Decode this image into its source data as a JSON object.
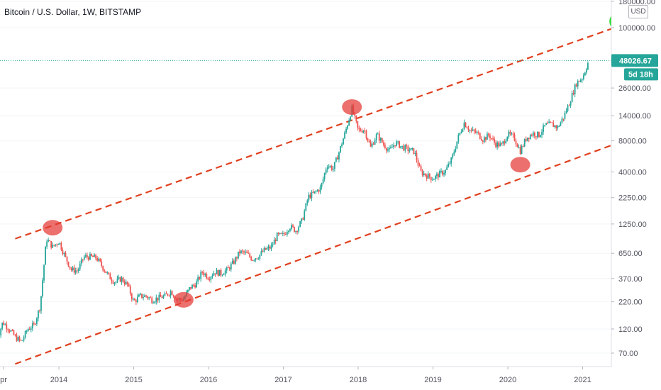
{
  "header": {
    "title": "Bitcoin / U.S. Dollar, 1W, BITSTAMP"
  },
  "price_axis": {
    "currency_button": "USD"
  },
  "last_price": {
    "value": "48026.67",
    "countdown": "5d 18h",
    "color": "#26a69a"
  },
  "colors": {
    "up": "#26a69a",
    "down": "#ef5350",
    "channel": "#e0401f",
    "highlight_red": "#e53935",
    "highlight_green": "#22dd22"
  },
  "chart_data": {
    "type": "candlestick",
    "title": "Bitcoin / U.S. Dollar, 1W, BITSTAMP",
    "yscale": "log",
    "ylim": [
      45,
      190000
    ],
    "xlim": [
      "2013-03",
      "2021-09"
    ],
    "x_ticks": [
      "pr",
      "2014",
      "2015",
      "2016",
      "2017",
      "2018",
      "2019",
      "2020",
      "2021"
    ],
    "y_ticks": [
      "180000.00",
      "100000.00",
      "26000.00",
      "14000.00",
      "8000.00",
      "4000.00",
      "2250.00",
      "1250.00",
      "650.00",
      "370.00",
      "220.00",
      "120.00",
      "70.00"
    ],
    "last_price": 48026.67,
    "price_path": [
      [
        "2013-03",
        90
      ],
      [
        "2013-04",
        140
      ],
      [
        "2013-05",
        120
      ],
      [
        "2013-06",
        100
      ],
      [
        "2013-07",
        90
      ],
      [
        "2013-08",
        120
      ],
      [
        "2013-09",
        130
      ],
      [
        "2013-10",
        200
      ],
      [
        "2013-11",
        900
      ],
      [
        "2013-12",
        750
      ],
      [
        "2014-01",
        850
      ],
      [
        "2014-02",
        600
      ],
      [
        "2014-03",
        450
      ],
      [
        "2014-04",
        440
      ],
      [
        "2014-05",
        600
      ],
      [
        "2014-06",
        600
      ],
      [
        "2014-07",
        590
      ],
      [
        "2014-08",
        480
      ],
      [
        "2014-09",
        390
      ],
      [
        "2014-10",
        340
      ],
      [
        "2014-11",
        370
      ],
      [
        "2014-12",
        320
      ],
      [
        "2015-01",
        220
      ],
      [
        "2015-02",
        250
      ],
      [
        "2015-03",
        250
      ],
      [
        "2015-04",
        230
      ],
      [
        "2015-05",
        240
      ],
      [
        "2015-06",
        250
      ],
      [
        "2015-07",
        280
      ],
      [
        "2015-08",
        230
      ],
      [
        "2015-09",
        235
      ],
      [
        "2015-10",
        300
      ],
      [
        "2015-11",
        330
      ],
      [
        "2015-12",
        430
      ],
      [
        "2016-01",
        380
      ],
      [
        "2016-02",
        430
      ],
      [
        "2016-03",
        415
      ],
      [
        "2016-04",
        450
      ],
      [
        "2016-05",
        530
      ],
      [
        "2016-06",
        670
      ],
      [
        "2016-07",
        650
      ],
      [
        "2016-08",
        575
      ],
      [
        "2016-09",
        610
      ],
      [
        "2016-10",
        700
      ],
      [
        "2016-11",
        740
      ],
      [
        "2016-12",
        960
      ],
      [
        "2017-01",
        970
      ],
      [
        "2017-02",
        1190
      ],
      [
        "2017-03",
        1080
      ],
      [
        "2017-04",
        1350
      ],
      [
        "2017-05",
        2300
      ],
      [
        "2017-06",
        2500
      ],
      [
        "2017-07",
        2800
      ],
      [
        "2017-08",
        4700
      ],
      [
        "2017-09",
        4300
      ],
      [
        "2017-10",
        6400
      ],
      [
        "2017-11",
        10000
      ],
      [
        "2017-12",
        16500
      ],
      [
        "2018-01",
        10100
      ],
      [
        "2018-02",
        10300
      ],
      [
        "2018-03",
        6900
      ],
      [
        "2018-04",
        9200
      ],
      [
        "2018-05",
        7500
      ],
      [
        "2018-06",
        6400
      ],
      [
        "2018-07",
        7700
      ],
      [
        "2018-08",
        7000
      ],
      [
        "2018-09",
        6600
      ],
      [
        "2018-10",
        6300
      ],
      [
        "2018-11",
        4000
      ],
      [
        "2018-12",
        3700
      ],
      [
        "2019-01",
        3450
      ],
      [
        "2019-02",
        3800
      ],
      [
        "2019-03",
        4100
      ],
      [
        "2019-04",
        5300
      ],
      [
        "2019-05",
        8500
      ],
      [
        "2019-06",
        12000
      ],
      [
        "2019-07",
        10000
      ],
      [
        "2019-08",
        9600
      ],
      [
        "2019-09",
        8300
      ],
      [
        "2019-10",
        9100
      ],
      [
        "2019-11",
        7500
      ],
      [
        "2019-12",
        7200
      ],
      [
        "2020-01",
        9300
      ],
      [
        "2020-02",
        8600
      ],
      [
        "2020-03",
        6400
      ],
      [
        "2020-04",
        8600
      ],
      [
        "2020-05",
        9450
      ],
      [
        "2020-06",
        9100
      ],
      [
        "2020-07",
        11300
      ],
      [
        "2020-08",
        11600
      ],
      [
        "2020-09",
        10800
      ],
      [
        "2020-10",
        13800
      ],
      [
        "2020-11",
        19700
      ],
      [
        "2020-12",
        29000
      ],
      [
        "2021-01",
        33000
      ],
      [
        "2021-02",
        48026.67
      ]
    ],
    "channel": {
      "upper": [
        [
          "2013-06",
          900
        ],
        [
          "2021-09",
          115000
        ]
      ],
      "lower": [
        [
          "2013-06",
          55
        ],
        [
          "2021-09",
          8600
        ]
      ]
    },
    "highlights": [
      {
        "date": "2013-12",
        "price": 1150,
        "color": "red"
      },
      {
        "date": "2015-09",
        "price": 230,
        "color": "red"
      },
      {
        "date": "2017-12",
        "price": 17000,
        "color": "red"
      },
      {
        "date": "2020-03",
        "price": 4700,
        "color": "red"
      },
      {
        "date": "2021-07",
        "price": 115000,
        "color": "green"
      }
    ]
  }
}
